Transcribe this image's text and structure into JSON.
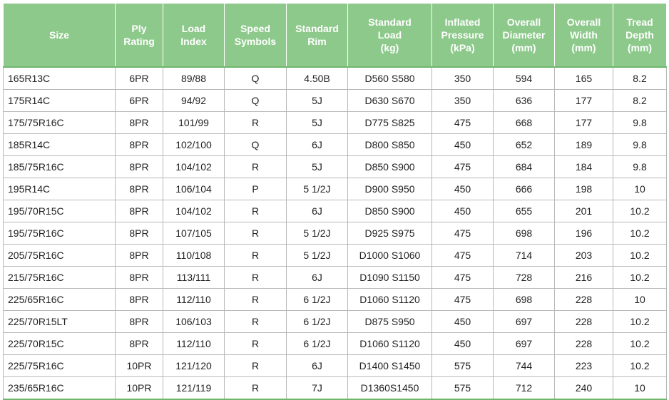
{
  "headers": [
    "Size",
    "Ply\nRating",
    "Load\nIndex",
    "Speed\nSymbols",
    "Standard\nRim",
    "Standard\nLoad\n(kg)",
    "Inflated\nPressure\n(kPa)",
    "Overall\nDiameter\n(mm)",
    "Overall\nWidth\n(mm)",
    "Tread\nDepth\n(mm)"
  ],
  "header_color": "#8dc98b",
  "rows": [
    [
      "165R13C",
      "6PR",
      "89/88",
      "Q",
      "4.50B",
      "D560 S580",
      "350",
      "594",
      "165",
      "8.2"
    ],
    [
      "175R14C",
      "6PR",
      "94/92",
      "Q",
      "5J",
      "D630 S670",
      "350",
      "636",
      "177",
      "8.2"
    ],
    [
      "175/75R16C",
      "8PR",
      "101/99",
      "R",
      "5J",
      "D775 S825",
      "475",
      "668",
      "177",
      "9.8"
    ],
    [
      "185R14C",
      "8PR",
      "102/100",
      "Q",
      "6J",
      "D800 S850",
      "450",
      "652",
      "189",
      "9.8"
    ],
    [
      "185/75R16C",
      "8PR",
      "104/102",
      "R",
      "5J",
      "D850 S900",
      "475",
      "684",
      "184",
      "9.8"
    ],
    [
      "195R14C",
      "8PR",
      "106/104",
      "P",
      "5 1/2J",
      "D900 S950",
      "450",
      "666",
      "198",
      "10"
    ],
    [
      "195/70R15C",
      "8PR",
      "104/102",
      "R",
      "6J",
      "D850 S900",
      "450",
      "655",
      "201",
      "10.2"
    ],
    [
      "195/75R16C",
      "8PR",
      "107/105",
      "R",
      "5 1/2J",
      "D925 S975",
      "475",
      "698",
      "196",
      "10.2"
    ],
    [
      "205/75R16C",
      "8PR",
      "110/108",
      "R",
      "5 1/2J",
      "D1000 S1060",
      "475",
      "714",
      "203",
      "10.2"
    ],
    [
      "215/75R16C",
      "8PR",
      "113/111",
      "R",
      "6J",
      "D1090 S1150",
      "475",
      "728",
      "216",
      "10.2"
    ],
    [
      "225/65R16C",
      "8PR",
      "112/110",
      "R",
      "6 1/2J",
      "D1060 S1120",
      "475",
      "698",
      "228",
      "10"
    ],
    [
      "225/70R15LT",
      "8PR",
      "106/103",
      "R",
      "6 1/2J",
      "D875 S950",
      "450",
      "697",
      "228",
      "10.2"
    ],
    [
      "225/70R15C",
      "8PR",
      "112/110",
      "R",
      "6 1/2J",
      "D1060 S1120",
      "450",
      "697",
      "228",
      "10.2"
    ],
    [
      "225/75R16C",
      "10PR",
      "121/120",
      "R",
      "6J",
      "D1400 S1450",
      "575",
      "744",
      "223",
      "10.2"
    ],
    [
      "235/65R16C",
      "10PR",
      "121/119",
      "R",
      "7J",
      "D1360S1450",
      "575",
      "712",
      "240",
      "10"
    ]
  ]
}
